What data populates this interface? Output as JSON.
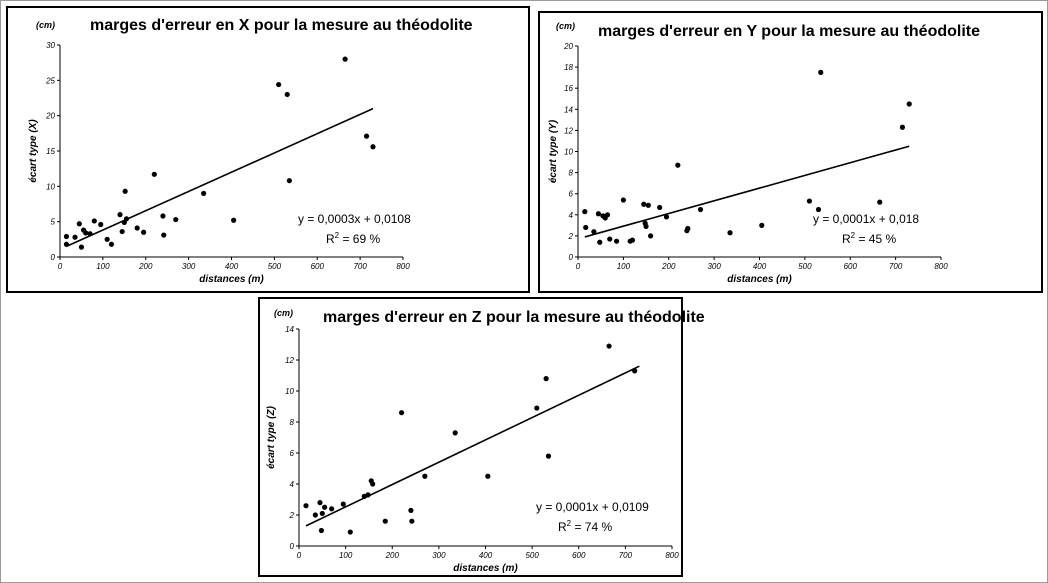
{
  "chart_data": [
    {
      "type": "scatter",
      "unit_label": "(cm)",
      "title": "marges d'erreur en X pour la mesure au théodolite",
      "xlabel": "distances (m)",
      "ylabel": "écart type (X)",
      "xlim": [
        0,
        800
      ],
      "ylim": [
        0,
        30
      ],
      "xticks": [
        "0",
        "100",
        "200",
        "300",
        "400",
        "500",
        "600",
        "700",
        "800"
      ],
      "yticks": [
        "0",
        "5",
        "10",
        "15",
        "20",
        "25",
        "30"
      ],
      "grid": false,
      "equation": "y = 0,0003x + 0,0108",
      "r2_prefix": "R",
      "r2_sup": "2",
      "r2_value": " = 69 %",
      "trendline": [
        [
          15,
          1.5
        ],
        [
          730,
          21
        ]
      ],
      "points": [
        [
          15,
          1.8
        ],
        [
          15,
          2.9
        ],
        [
          35,
          2.8
        ],
        [
          45,
          4.7
        ],
        [
          50,
          1.4
        ],
        [
          55,
          3.8
        ],
        [
          60,
          3.4
        ],
        [
          70,
          3.3
        ],
        [
          80,
          5.1
        ],
        [
          95,
          4.6
        ],
        [
          110,
          2.5
        ],
        [
          120,
          1.8
        ],
        [
          140,
          6.0
        ],
        [
          145,
          3.6
        ],
        [
          150,
          4.9
        ],
        [
          152,
          9.3
        ],
        [
          155,
          5.4
        ],
        [
          180,
          4.1
        ],
        [
          195,
          3.5
        ],
        [
          220,
          11.7
        ],
        [
          240,
          5.8
        ],
        [
          242,
          3.1
        ],
        [
          270,
          5.3
        ],
        [
          335,
          9.0
        ],
        [
          405,
          5.2
        ],
        [
          510,
          24.4
        ],
        [
          530,
          23.0
        ],
        [
          535,
          10.8
        ],
        [
          665,
          28.0
        ],
        [
          715,
          17.1
        ],
        [
          730,
          15.6
        ]
      ]
    },
    {
      "type": "scatter",
      "unit_label": "(cm)",
      "title": "marges d'erreur en Y pour la mesure au théodolite",
      "xlabel": "distances (m)",
      "ylabel": "écart type (Y)",
      "xlim": [
        0,
        800
      ],
      "ylim": [
        0,
        20
      ],
      "xticks": [
        "0",
        "100",
        "200",
        "300",
        "400",
        "500",
        "600",
        "700",
        "800"
      ],
      "yticks": [
        "0",
        "2",
        "4",
        "6",
        "8",
        "10",
        "12",
        "14",
        "16",
        "18",
        "20"
      ],
      "grid": false,
      "equation": "y = 0,0001x + 0,018",
      "r2_prefix": "R",
      "r2_sup": "2",
      "r2_value": " = 45 %",
      "trendline": [
        [
          15,
          1.9
        ],
        [
          730,
          10.5
        ]
      ],
      "points": [
        [
          15,
          4.3
        ],
        [
          17,
          2.8
        ],
        [
          35,
          2.4
        ],
        [
          45,
          4.1
        ],
        [
          48,
          1.4
        ],
        [
          55,
          3.9
        ],
        [
          60,
          3.7
        ],
        [
          65,
          4.0
        ],
        [
          70,
          1.7
        ],
        [
          85,
          1.5
        ],
        [
          100,
          5.4
        ],
        [
          115,
          1.5
        ],
        [
          120,
          1.6
        ],
        [
          145,
          5.0
        ],
        [
          148,
          3.2
        ],
        [
          150,
          2.9
        ],
        [
          155,
          4.9
        ],
        [
          160,
          2.0
        ],
        [
          180,
          4.7
        ],
        [
          195,
          3.8
        ],
        [
          220,
          8.7
        ],
        [
          240,
          2.5
        ],
        [
          242,
          2.7
        ],
        [
          270,
          4.5
        ],
        [
          335,
          2.3
        ],
        [
          405,
          3.0
        ],
        [
          510,
          5.3
        ],
        [
          530,
          4.5
        ],
        [
          535,
          17.5
        ],
        [
          665,
          5.2
        ],
        [
          715,
          12.3
        ],
        [
          730,
          14.5
        ]
      ]
    },
    {
      "type": "scatter",
      "unit_label": "(cm)",
      "title": "marges d'erreur en Z pour la mesure au théodolite",
      "xlabel": "distances (m)",
      "ylabel": "écart type (Z)",
      "xlim": [
        0,
        800
      ],
      "ylim": [
        0,
        14
      ],
      "xticks": [
        "0",
        "100",
        "200",
        "300",
        "400",
        "500",
        "600",
        "700",
        "800"
      ],
      "yticks": [
        "0",
        "2",
        "4",
        "6",
        "8",
        "10",
        "12",
        "14"
      ],
      "grid": false,
      "equation": "y = 0,0001x + 0,0109",
      "r2_prefix": "R",
      "r2_sup": "2",
      "r2_value": " = 74 %",
      "trendline": [
        [
          15,
          1.3
        ],
        [
          730,
          11.6
        ]
      ],
      "points": [
        [
          15,
          2.6
        ],
        [
          35,
          2.0
        ],
        [
          45,
          2.8
        ],
        [
          48,
          1.0
        ],
        [
          50,
          2.1
        ],
        [
          55,
          2.5
        ],
        [
          70,
          2.4
        ],
        [
          95,
          2.7
        ],
        [
          110,
          0.9
        ],
        [
          140,
          3.2
        ],
        [
          148,
          3.3
        ],
        [
          155,
          4.2
        ],
        [
          158,
          4.0
        ],
        [
          185,
          1.6
        ],
        [
          220,
          8.6
        ],
        [
          240,
          2.3
        ],
        [
          242,
          1.6
        ],
        [
          270,
          4.5
        ],
        [
          335,
          7.3
        ],
        [
          405,
          4.5
        ],
        [
          510,
          8.9
        ],
        [
          530,
          10.8
        ],
        [
          535,
          5.8
        ],
        [
          665,
          12.9
        ],
        [
          720,
          11.3
        ]
      ]
    }
  ]
}
